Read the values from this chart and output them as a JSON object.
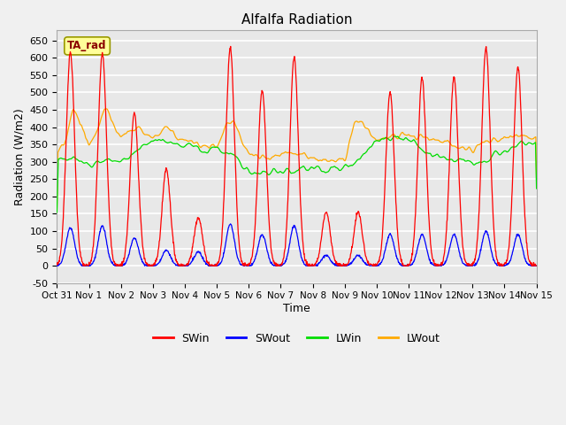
{
  "title": "Alfalfa Radiation",
  "xlabel": "Time",
  "ylabel": "Radiation (W/m2)",
  "annotation": "TA_rad",
  "annotation_color": "#8B0000",
  "annotation_bg": "#FFFF99",
  "annotation_edge": "#999900",
  "ylim": [
    -50,
    680
  ],
  "bg_color": "#e8e8e8",
  "fig_color": "#f0f0f0",
  "grid_color": "white",
  "series_colors": {
    "SWin": "#ff0000",
    "SWout": "#0000ff",
    "LWin": "#00dd00",
    "LWout": "#ffaa00"
  },
  "n_days": 15,
  "xtick_labels": [
    "Oct 31",
    "Nov 1",
    "Nov 2",
    "Nov 3",
    "Nov 4",
    "Nov 5",
    "Nov 6",
    "Nov 7",
    "Nov 8",
    "Nov 9",
    "Nov 10",
    "Nov 11",
    "Nov 12",
    "Nov 13",
    "Nov 14",
    "Nov 15"
  ],
  "SWin_peaks": [
    615,
    615,
    440,
    280,
    140,
    630,
    505,
    600,
    155,
    155,
    500,
    540,
    545,
    630,
    575
  ],
  "SWout_peaks": [
    110,
    115,
    80,
    45,
    40,
    120,
    90,
    115,
    30,
    30,
    90,
    90,
    90,
    100,
    90
  ],
  "pts_per_day": 96
}
